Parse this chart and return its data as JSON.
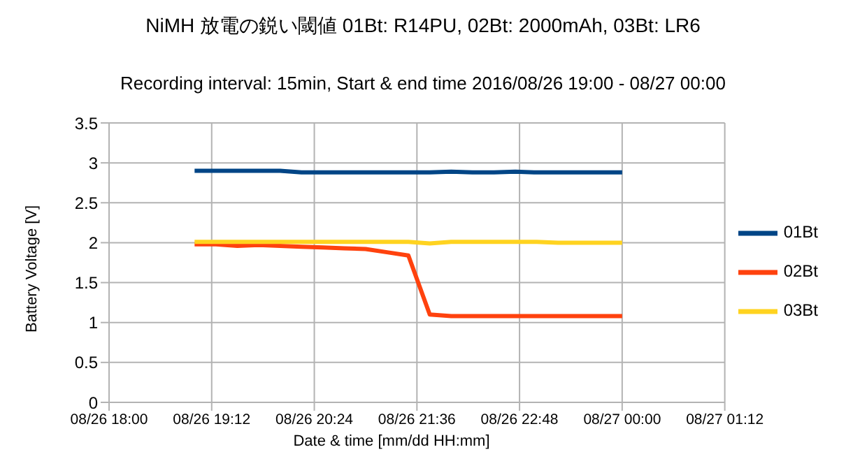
{
  "chart_data": {
    "type": "line",
    "title": "NiMH  放電の鋭い閾値  01Bt: R14PU, 02Bt: 2000mAh, 03Bt: LR6",
    "subtitle": "Recording interval: 15min, Start & end time 2016/08/26 19:00 - 08/27 00:00",
    "xlabel": "Date & time [mm/dd HH:mm]",
    "ylabel": "Battery Voltage [V]",
    "x": [
      "2016-08-26T19:00",
      "2016-08-26T19:15",
      "2016-08-26T19:30",
      "2016-08-26T19:45",
      "2016-08-26T20:00",
      "2016-08-26T20:15",
      "2016-08-26T20:30",
      "2016-08-26T20:45",
      "2016-08-26T21:00",
      "2016-08-26T21:15",
      "2016-08-26T21:30",
      "2016-08-26T21:45",
      "2016-08-26T22:00",
      "2016-08-26T22:15",
      "2016-08-26T22:30",
      "2016-08-26T22:45",
      "2016-08-26T23:00",
      "2016-08-26T23:15",
      "2016-08-26T23:30",
      "2016-08-26T23:45",
      "2016-08-27T00:00"
    ],
    "series": [
      {
        "name": "01Bt",
        "color": "#004586",
        "values": [
          2.9,
          2.9,
          2.9,
          2.9,
          2.9,
          2.88,
          2.88,
          2.88,
          2.88,
          2.88,
          2.88,
          2.88,
          2.89,
          2.88,
          2.88,
          2.89,
          2.88,
          2.88,
          2.88,
          2.88,
          2.88
        ]
      },
      {
        "name": "02Bt",
        "color": "#ff420e",
        "values": [
          1.98,
          1.98,
          1.96,
          1.97,
          1.96,
          1.95,
          1.94,
          1.93,
          1.92,
          1.88,
          1.84,
          1.1,
          1.08,
          1.08,
          1.08,
          1.08,
          1.08,
          1.08,
          1.08,
          1.08,
          1.08
        ]
      },
      {
        "name": "03Bt",
        "color": "#ffd320",
        "values": [
          2.01,
          2.01,
          2.01,
          2.01,
          2.01,
          2.01,
          2.01,
          2.01,
          2.01,
          2.01,
          2.01,
          1.99,
          2.01,
          2.01,
          2.01,
          2.01,
          2.01,
          2.0,
          2.0,
          2.0,
          2.0
        ]
      }
    ],
    "xlim": [
      "2016-08-26T18:00",
      "2016-08-27T01:12"
    ],
    "xticks": [
      {
        "value": "2016-08-26T18:00",
        "label": "08/26 18:00"
      },
      {
        "value": "2016-08-26T19:12",
        "label": "08/26 19:12"
      },
      {
        "value": "2016-08-26T20:24",
        "label": "08/26 20:24"
      },
      {
        "value": "2016-08-26T21:36",
        "label": "08/26 21:36"
      },
      {
        "value": "2016-08-26T22:48",
        "label": "08/26 22:48"
      },
      {
        "value": "2016-08-27T00:00",
        "label": "08/27 00:00"
      },
      {
        "value": "2016-08-27T01:12",
        "label": "08/27 01:12"
      }
    ],
    "ylim": [
      0,
      3.5
    ],
    "yticks": [
      0,
      0.5,
      1,
      1.5,
      2,
      2.5,
      3,
      3.5
    ],
    "grid": true,
    "legend": "right",
    "marker": "none",
    "line_style": "solid"
  }
}
